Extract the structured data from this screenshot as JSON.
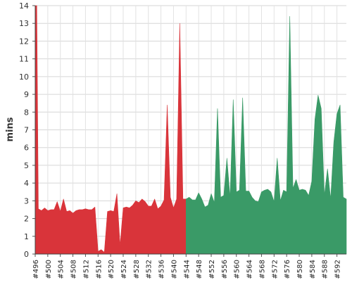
{
  "chart_data": {
    "type": "area",
    "title": "",
    "xlabel": "",
    "ylabel": "mins",
    "ylim": [
      0,
      14
    ],
    "yticks": [
      0,
      1,
      2,
      3,
      4,
      5,
      6,
      7,
      8,
      9,
      10,
      11,
      12,
      13,
      14
    ],
    "xlim": [
      496,
      595
    ],
    "xtick_values": [
      496,
      500,
      504,
      508,
      512,
      516,
      520,
      524,
      528,
      532,
      536,
      540,
      544,
      548,
      552,
      556,
      560,
      564,
      568,
      572,
      576,
      580,
      584,
      588,
      592
    ],
    "xtick_labels": [
      "#496",
      "#500",
      "#504",
      "#508",
      "#512",
      "#516",
      "#520",
      "#524",
      "#528",
      "#532",
      "#536",
      "#540",
      "#544",
      "#548",
      "#552",
      "#556",
      "#560",
      "#564",
      "#568",
      "#572",
      "#576",
      "#580",
      "#584",
      "#588",
      "#592"
    ],
    "grid": true,
    "series": [
      {
        "color": "#d9343a",
        "points": [
          [
            496,
            14.0
          ],
          [
            496.5,
            14.0
          ],
          [
            497,
            2.55
          ],
          [
            498,
            2.45
          ],
          [
            499,
            2.6
          ],
          [
            500,
            2.45
          ],
          [
            501,
            2.5
          ],
          [
            502,
            2.5
          ],
          [
            503,
            2.95
          ],
          [
            504,
            2.4
          ],
          [
            505,
            3.1
          ],
          [
            506,
            2.4
          ],
          [
            507,
            2.45
          ],
          [
            508,
            2.3
          ],
          [
            509,
            2.45
          ],
          [
            510,
            2.5
          ],
          [
            511,
            2.5
          ],
          [
            512,
            2.55
          ],
          [
            513,
            2.5
          ],
          [
            514,
            2.5
          ],
          [
            515,
            2.65
          ],
          [
            516,
            0.15
          ],
          [
            517,
            0.25
          ],
          [
            518,
            0.1
          ],
          [
            519,
            2.4
          ],
          [
            520,
            2.45
          ],
          [
            521,
            2.4
          ],
          [
            522,
            3.4
          ],
          [
            523,
            0.5
          ],
          [
            524,
            2.6
          ],
          [
            525,
            2.65
          ],
          [
            526,
            2.6
          ],
          [
            527,
            2.75
          ],
          [
            528,
            3.0
          ],
          [
            529,
            2.9
          ],
          [
            530,
            3.1
          ],
          [
            531,
            2.95
          ],
          [
            532,
            2.7
          ],
          [
            533,
            2.7
          ],
          [
            534,
            3.1
          ],
          [
            535,
            2.55
          ],
          [
            536,
            2.7
          ],
          [
            537,
            3.05
          ],
          [
            538,
            8.4
          ],
          [
            539,
            3.2
          ],
          [
            540,
            2.6
          ],
          [
            541,
            3.1
          ],
          [
            542,
            13.0
          ],
          [
            543,
            3.1
          ],
          [
            544,
            3.1
          ]
        ]
      },
      {
        "color": "#3a9a67",
        "points": [
          [
            544,
            3.1
          ],
          [
            545,
            3.2
          ],
          [
            546,
            3.05
          ],
          [
            547,
            3.05
          ],
          [
            548,
            3.45
          ],
          [
            549,
            3.1
          ],
          [
            550,
            2.65
          ],
          [
            551,
            2.75
          ],
          [
            552,
            3.4
          ],
          [
            553,
            2.9
          ],
          [
            554,
            8.2
          ],
          [
            555,
            3.2
          ],
          [
            556,
            3.3
          ],
          [
            557,
            5.4
          ],
          [
            558,
            3.2
          ],
          [
            559,
            8.7
          ],
          [
            560,
            3.5
          ],
          [
            561,
            3.6
          ],
          [
            562,
            8.8
          ],
          [
            563,
            3.55
          ],
          [
            564,
            3.55
          ],
          [
            565,
            3.2
          ],
          [
            566,
            3.0
          ],
          [
            567,
            2.95
          ],
          [
            568,
            3.5
          ],
          [
            569,
            3.6
          ],
          [
            570,
            3.65
          ],
          [
            571,
            3.5
          ],
          [
            572,
            2.95
          ],
          [
            573,
            5.4
          ],
          [
            574,
            3.0
          ],
          [
            575,
            3.6
          ],
          [
            576,
            3.5
          ],
          [
            577,
            13.4
          ],
          [
            578,
            3.7
          ],
          [
            579,
            4.2
          ],
          [
            580,
            3.6
          ],
          [
            581,
            3.65
          ],
          [
            582,
            3.6
          ],
          [
            583,
            3.3
          ],
          [
            584,
            4.1
          ],
          [
            585,
            7.6
          ],
          [
            586,
            8.95
          ],
          [
            587,
            8.2
          ],
          [
            588,
            3.3
          ],
          [
            589,
            4.8
          ],
          [
            590,
            3.1
          ],
          [
            591,
            6.3
          ],
          [
            592,
            7.9
          ],
          [
            593,
            8.4
          ],
          [
            594,
            3.2
          ],
          [
            595,
            3.1
          ]
        ]
      }
    ]
  }
}
